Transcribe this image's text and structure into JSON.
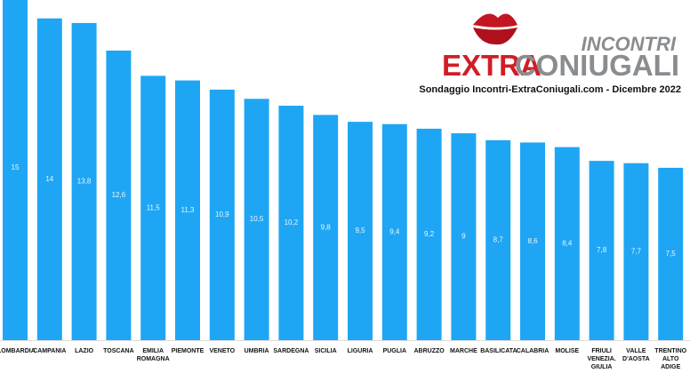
{
  "chart_data": {
    "type": "bar",
    "subtitle": "Sondaggio Incontri-ExtraConiugali.com - Dicembre 2022",
    "logo": {
      "top": "INCONTRI",
      "left": "EXTRA",
      "right": "CONIUGALI"
    },
    "categories": [
      "LOMBARDIA",
      "CAMPANIA",
      "LAZIO",
      "TOSCANA",
      "EMILIA ROMAGNA",
      "PIEMONTE",
      "VENETO",
      "UMBRIA",
      "SARDEGNA",
      "SICILIA",
      "LIGURIA",
      "PUGLIA",
      "ABRUZZO",
      "MARCHE",
      "BASILICATA",
      "CALABRIA",
      "MOLISE",
      "FRIULI VENEZIA. GIULIA",
      "VALLE D'AOSTA",
      "TRENTINO ALTO ADIGE"
    ],
    "values": [
      15,
      14,
      13.8,
      12.6,
      11.5,
      11.3,
      10.9,
      10.5,
      10.2,
      9.8,
      9.5,
      9.4,
      9.2,
      9,
      8.7,
      8.6,
      8.4,
      7.8,
      7.7,
      7.5
    ],
    "value_labels": [
      "15",
      "14",
      "13,8",
      "12,6",
      "11,5",
      "11,3",
      "10,9",
      "10,5",
      "10,2",
      "9,8",
      "9,5",
      "9,4",
      "9,2",
      "9",
      "8,7",
      "8,6",
      "8,4",
      "7,8",
      "7,7",
      "7,5"
    ],
    "color": "#1ea6f4",
    "ylim": [
      0,
      14.8
    ]
  }
}
